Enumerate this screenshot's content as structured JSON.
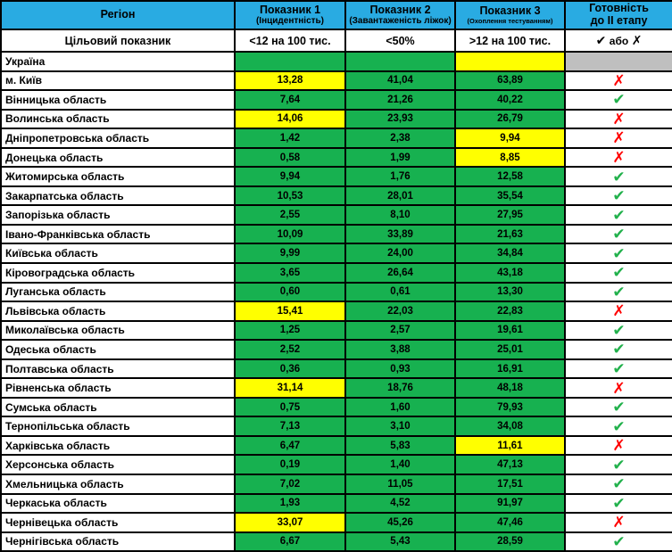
{
  "colors": {
    "header_blue": "#29ABE2",
    "cell_green": "#17B150",
    "cell_yellow": "#FFFF00",
    "cell_gray": "#BFBFBF",
    "check_green": "#22B14C",
    "cross_red": "#FF0000"
  },
  "glyphs": {
    "check": "✔",
    "cross": "✗"
  },
  "table": {
    "columns": [
      {
        "title": "Регіон",
        "subtitle": ""
      },
      {
        "title": "Показник 1",
        "subtitle": "(Інцидентність)"
      },
      {
        "title": "Показник 2",
        "subtitle": "(Завантаженість ліжок)"
      },
      {
        "title": "Показник 3",
        "subtitle": "(Охоплення тестуванням)"
      },
      {
        "title": "Готовність",
        "subtitle": "до II етапу"
      }
    ],
    "target_row": {
      "label": "Цільовий показник",
      "targets": [
        "<12 на 100 тис.",
        "<50%",
        ">12 на 100 тис."
      ],
      "legend": {
        "check": "✔",
        "separator": "або",
        "cross": "✗"
      }
    },
    "rows": [
      {
        "name": "Україна",
        "values": [
          "",
          "",
          ""
        ],
        "cell_colors": [
          "green",
          "green",
          "yellow"
        ],
        "ready": "none"
      },
      {
        "name": "м. Київ",
        "values": [
          "13,28",
          "41,04",
          "63,89"
        ],
        "cell_colors": [
          "yellow",
          "green",
          "green"
        ],
        "ready": "cross"
      },
      {
        "name": "Вінницька область",
        "values": [
          "7,64",
          "21,26",
          "40,22"
        ],
        "cell_colors": [
          "green",
          "green",
          "green"
        ],
        "ready": "check"
      },
      {
        "name": "Волинська область",
        "values": [
          "14,06",
          "23,93",
          "26,79"
        ],
        "cell_colors": [
          "yellow",
          "green",
          "green"
        ],
        "ready": "cross"
      },
      {
        "name": "Дніпропетровська область",
        "values": [
          "1,42",
          "2,38",
          "9,94"
        ],
        "cell_colors": [
          "green",
          "green",
          "yellow"
        ],
        "ready": "cross"
      },
      {
        "name": "Донецька область",
        "values": [
          "0,58",
          "1,99",
          "8,85"
        ],
        "cell_colors": [
          "green",
          "green",
          "yellow"
        ],
        "ready": "cross"
      },
      {
        "name": "Житомирська область",
        "values": [
          "9,94",
          "1,76",
          "12,58"
        ],
        "cell_colors": [
          "green",
          "green",
          "green"
        ],
        "ready": "check"
      },
      {
        "name": "Закарпатська область",
        "values": [
          "10,53",
          "28,01",
          "35,54"
        ],
        "cell_colors": [
          "green",
          "green",
          "green"
        ],
        "ready": "check"
      },
      {
        "name": "Запорізька область",
        "values": [
          "2,55",
          "8,10",
          "27,95"
        ],
        "cell_colors": [
          "green",
          "green",
          "green"
        ],
        "ready": "check"
      },
      {
        "name": "Івано-Франківська область",
        "values": [
          "10,09",
          "33,89",
          "21,63"
        ],
        "cell_colors": [
          "green",
          "green",
          "green"
        ],
        "ready": "check"
      },
      {
        "name": "Київська область",
        "values": [
          "9,99",
          "24,00",
          "34,84"
        ],
        "cell_colors": [
          "green",
          "green",
          "green"
        ],
        "ready": "check"
      },
      {
        "name": "Кіровоградська область",
        "values": [
          "3,65",
          "26,64",
          "43,18"
        ],
        "cell_colors": [
          "green",
          "green",
          "green"
        ],
        "ready": "check"
      },
      {
        "name": "Луганська область",
        "values": [
          "0,60",
          "0,61",
          "13,30"
        ],
        "cell_colors": [
          "green",
          "green",
          "green"
        ],
        "ready": "check"
      },
      {
        "name": "Львівська область",
        "values": [
          "15,41",
          "22,03",
          "22,83"
        ],
        "cell_colors": [
          "yellow",
          "green",
          "green"
        ],
        "ready": "cross"
      },
      {
        "name": "Миколаївська область",
        "values": [
          "1,25",
          "2,57",
          "19,61"
        ],
        "cell_colors": [
          "green",
          "green",
          "green"
        ],
        "ready": "check"
      },
      {
        "name": "Одеська область",
        "values": [
          "2,52",
          "3,88",
          "25,01"
        ],
        "cell_colors": [
          "green",
          "green",
          "green"
        ],
        "ready": "check"
      },
      {
        "name": "Полтавська область",
        "values": [
          "0,36",
          "0,93",
          "16,91"
        ],
        "cell_colors": [
          "green",
          "green",
          "green"
        ],
        "ready": "check"
      },
      {
        "name": "Рівненська область",
        "values": [
          "31,14",
          "18,76",
          "48,18"
        ],
        "cell_colors": [
          "yellow",
          "green",
          "green"
        ],
        "ready": "cross"
      },
      {
        "name": "Сумська область",
        "values": [
          "0,75",
          "1,60",
          "79,93"
        ],
        "cell_colors": [
          "green",
          "green",
          "green"
        ],
        "ready": "check"
      },
      {
        "name": "Тернопільська область",
        "values": [
          "7,13",
          "3,10",
          "34,08"
        ],
        "cell_colors": [
          "green",
          "green",
          "green"
        ],
        "ready": "check"
      },
      {
        "name": "Харківська область",
        "values": [
          "6,47",
          "5,83",
          "11,61"
        ],
        "cell_colors": [
          "green",
          "green",
          "yellow"
        ],
        "ready": "cross"
      },
      {
        "name": "Херсонська область",
        "values": [
          "0,19",
          "1,40",
          "47,13"
        ],
        "cell_colors": [
          "green",
          "green",
          "green"
        ],
        "ready": "check"
      },
      {
        "name": "Хмельницька область",
        "values": [
          "7,02",
          "11,05",
          "17,51"
        ],
        "cell_colors": [
          "green",
          "green",
          "green"
        ],
        "ready": "check"
      },
      {
        "name": "Черкаська область",
        "values": [
          "1,93",
          "4,52",
          "91,97"
        ],
        "cell_colors": [
          "green",
          "green",
          "green"
        ],
        "ready": "check"
      },
      {
        "name": "Чернівецька область",
        "values": [
          "33,07",
          "45,26",
          "47,46"
        ],
        "cell_colors": [
          "yellow",
          "green",
          "green"
        ],
        "ready": "cross"
      },
      {
        "name": "Чернігівська область",
        "values": [
          "6,67",
          "5,43",
          "28,59"
        ],
        "cell_colors": [
          "green",
          "green",
          "green"
        ],
        "ready": "check"
      }
    ]
  }
}
